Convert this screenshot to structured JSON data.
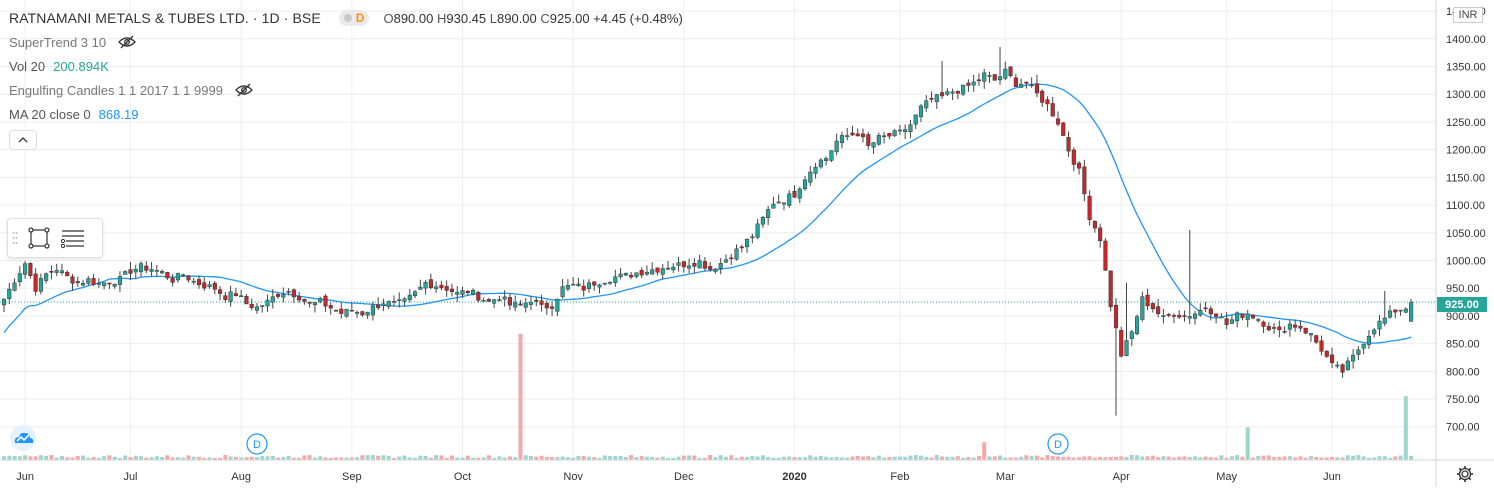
{
  "header": {
    "title": "RATNAMANI METALS & TUBES LTD. · 1D · BSE",
    "exchange_badge": "D",
    "ohlc": {
      "o_label": "O",
      "o": "890.00",
      "h_label": "H",
      "h": "930.45",
      "l_label": "L",
      "l": "890.00",
      "c_label": "C",
      "c": "925.00",
      "change": "+4.45 (+0.48%)"
    }
  },
  "indicators": {
    "supertrend": "SuperTrend 3 10",
    "volume_label": "Vol 20",
    "volume_value": "200.894K",
    "engulfing": "Engulfing Candles 1 1 2017 1 1 9999",
    "ma_label": "MA 20 close 0",
    "ma_value": "868.19"
  },
  "currency": "INR",
  "last_price_label": "925.00",
  "icons": {
    "eye": "eye-hidden-icon",
    "collapse": "chevron-up-icon",
    "rectangle": "rectangle-select-icon",
    "lines": "lines-menu-icon",
    "logo": "tradingview-cloud-icon",
    "settings": "gear-icon"
  },
  "colors": {
    "up": "#26a69a",
    "down": "#c62828",
    "ma": "#2196f3",
    "vol_up": "#9fd5cf",
    "vol_down": "#f4a8a8",
    "grid": "#eeeeee"
  },
  "chart_data": {
    "type": "candlestick",
    "title": "RATNAMANI METALS & TUBES LTD. · 1D · BSE",
    "y_axis": {
      "range": [
        640,
        1470
      ],
      "ticks": [
        "1450.00",
        "1400.00",
        "1350.00",
        "1300.00",
        "1250.00",
        "1200.00",
        "1150.00",
        "1100.00",
        "1050.00",
        "1000.00",
        "950.00",
        "900.00",
        "850.00",
        "800.00",
        "750.00",
        "700.00"
      ],
      "tick_values": [
        1450,
        1400,
        1350,
        1300,
        1250,
        1200,
        1150,
        1100,
        1050,
        1000,
        950,
        900,
        850,
        800,
        750,
        700
      ]
    },
    "x_axis": {
      "labels": [
        "Jun",
        "Jul",
        "Aug",
        "Sep",
        "Oct",
        "Nov",
        "Dec",
        "2020",
        "Feb",
        "Mar",
        "Apr",
        "May",
        "Jun"
      ],
      "label_index": [
        4,
        24,
        45,
        66,
        87,
        108,
        129,
        150,
        170,
        190,
        212,
        232,
        252
      ],
      "bold_index": 7
    },
    "last_price": 925,
    "dividend_markers": [
      {
        "label": "D",
        "index": 48
      },
      {
        "label": "D",
        "index": 200
      }
    ],
    "anchors_close": [
      [
        0,
        930
      ],
      [
        2,
        965
      ],
      [
        4,
        995
      ],
      [
        6,
        950
      ],
      [
        8,
        975
      ],
      [
        10,
        985
      ],
      [
        12,
        970
      ],
      [
        14,
        960
      ],
      [
        16,
        965
      ],
      [
        18,
        958
      ],
      [
        20,
        962
      ],
      [
        22,
        965
      ],
      [
        24,
        982
      ],
      [
        26,
        988
      ],
      [
        28,
        985
      ],
      [
        30,
        978
      ],
      [
        32,
        965
      ],
      [
        34,
        975
      ],
      [
        36,
        962
      ],
      [
        38,
        955
      ],
      [
        40,
        950
      ],
      [
        42,
        935
      ],
      [
        44,
        940
      ],
      [
        46,
        922
      ],
      [
        48,
        915
      ],
      [
        50,
        925
      ],
      [
        52,
        940
      ],
      [
        54,
        945
      ],
      [
        56,
        935
      ],
      [
        58,
        920
      ],
      [
        60,
        925
      ],
      [
        62,
        915
      ],
      [
        64,
        905
      ],
      [
        66,
        910
      ],
      [
        68,
        905
      ],
      [
        70,
        915
      ],
      [
        72,
        925
      ],
      [
        74,
        920
      ],
      [
        76,
        925
      ],
      [
        78,
        940
      ],
      [
        80,
        960
      ],
      [
        82,
        955
      ],
      [
        84,
        950
      ],
      [
        86,
        940
      ],
      [
        88,
        945
      ],
      [
        90,
        935
      ],
      [
        92,
        925
      ],
      [
        94,
        935
      ],
      [
        96,
        920
      ],
      [
        98,
        918
      ],
      [
        100,
        930
      ],
      [
        102,
        915
      ],
      [
        104,
        920
      ],
      [
        106,
        950
      ],
      [
        108,
        955
      ],
      [
        110,
        950
      ],
      [
        112,
        960
      ],
      [
        114,
        965
      ],
      [
        116,
        970
      ],
      [
        118,
        972
      ],
      [
        120,
        978
      ],
      [
        122,
        982
      ],
      [
        124,
        985
      ],
      [
        126,
        990
      ],
      [
        128,
        992
      ],
      [
        130,
        995
      ],
      [
        132,
        998
      ],
      [
        134,
        985
      ],
      [
        136,
        995
      ],
      [
        138,
        1010
      ],
      [
        140,
        1025
      ],
      [
        142,
        1045
      ],
      [
        144,
        1075
      ],
      [
        146,
        1105
      ],
      [
        148,
        1110
      ],
      [
        150,
        1120
      ],
      [
        152,
        1150
      ],
      [
        154,
        1175
      ],
      [
        156,
        1185
      ],
      [
        158,
        1215
      ],
      [
        160,
        1225
      ],
      [
        162,
        1230
      ],
      [
        164,
        1205
      ],
      [
        166,
        1220
      ],
      [
        168,
        1225
      ],
      [
        170,
        1230
      ],
      [
        172,
        1245
      ],
      [
        174,
        1275
      ],
      [
        176,
        1290
      ],
      [
        178,
        1295
      ],
      [
        180,
        1305
      ],
      [
        182,
        1310
      ],
      [
        184,
        1320
      ],
      [
        186,
        1335
      ],
      [
        188,
        1325
      ],
      [
        190,
        1340
      ],
      [
        192,
        1320
      ],
      [
        194,
        1320
      ],
      [
        196,
        1300
      ],
      [
        198,
        1280
      ],
      [
        200,
        1250
      ],
      [
        202,
        1200
      ],
      [
        204,
        1160
      ],
      [
        206,
        1080
      ],
      [
        208,
        1040
      ],
      [
        210,
        920
      ],
      [
        212,
        830
      ],
      [
        214,
        870
      ],
      [
        216,
        930
      ],
      [
        218,
        915
      ],
      [
        220,
        895
      ],
      [
        222,
        905
      ],
      [
        224,
        900
      ],
      [
        226,
        905
      ],
      [
        228,
        915
      ],
      [
        230,
        905
      ],
      [
        232,
        885
      ],
      [
        234,
        900
      ],
      [
        236,
        905
      ],
      [
        238,
        895
      ],
      [
        240,
        880
      ],
      [
        242,
        870
      ],
      [
        244,
        885
      ],
      [
        246,
        880
      ],
      [
        248,
        865
      ],
      [
        250,
        840
      ],
      [
        252,
        810
      ],
      [
        254,
        800
      ],
      [
        256,
        825
      ],
      [
        258,
        855
      ],
      [
        260,
        880
      ],
      [
        262,
        895
      ],
      [
        264,
        910
      ],
      [
        266,
        915
      ],
      [
        267,
        925
      ]
    ],
    "spikes": [
      {
        "index": 178,
        "high": 1360
      },
      {
        "index": 189,
        "high": 1385
      },
      {
        "index": 196,
        "high": 1335
      },
      {
        "index": 211,
        "high": 720
      },
      {
        "index": 213,
        "high": 960
      },
      {
        "index": 225,
        "high": 1055
      },
      {
        "index": 262,
        "high": 945
      }
    ],
    "ma_period": 20,
    "volume": {
      "baseline_ratio": 0.012,
      "spikes": [
        {
          "index": 98,
          "value": 0.85,
          "dir": "down"
        },
        {
          "index": 186,
          "value": 0.12,
          "dir": "down"
        },
        {
          "index": 236,
          "value": 0.22,
          "dir": "up"
        },
        {
          "index": 266,
          "value": 0.43,
          "dir": "up"
        }
      ]
    }
  }
}
